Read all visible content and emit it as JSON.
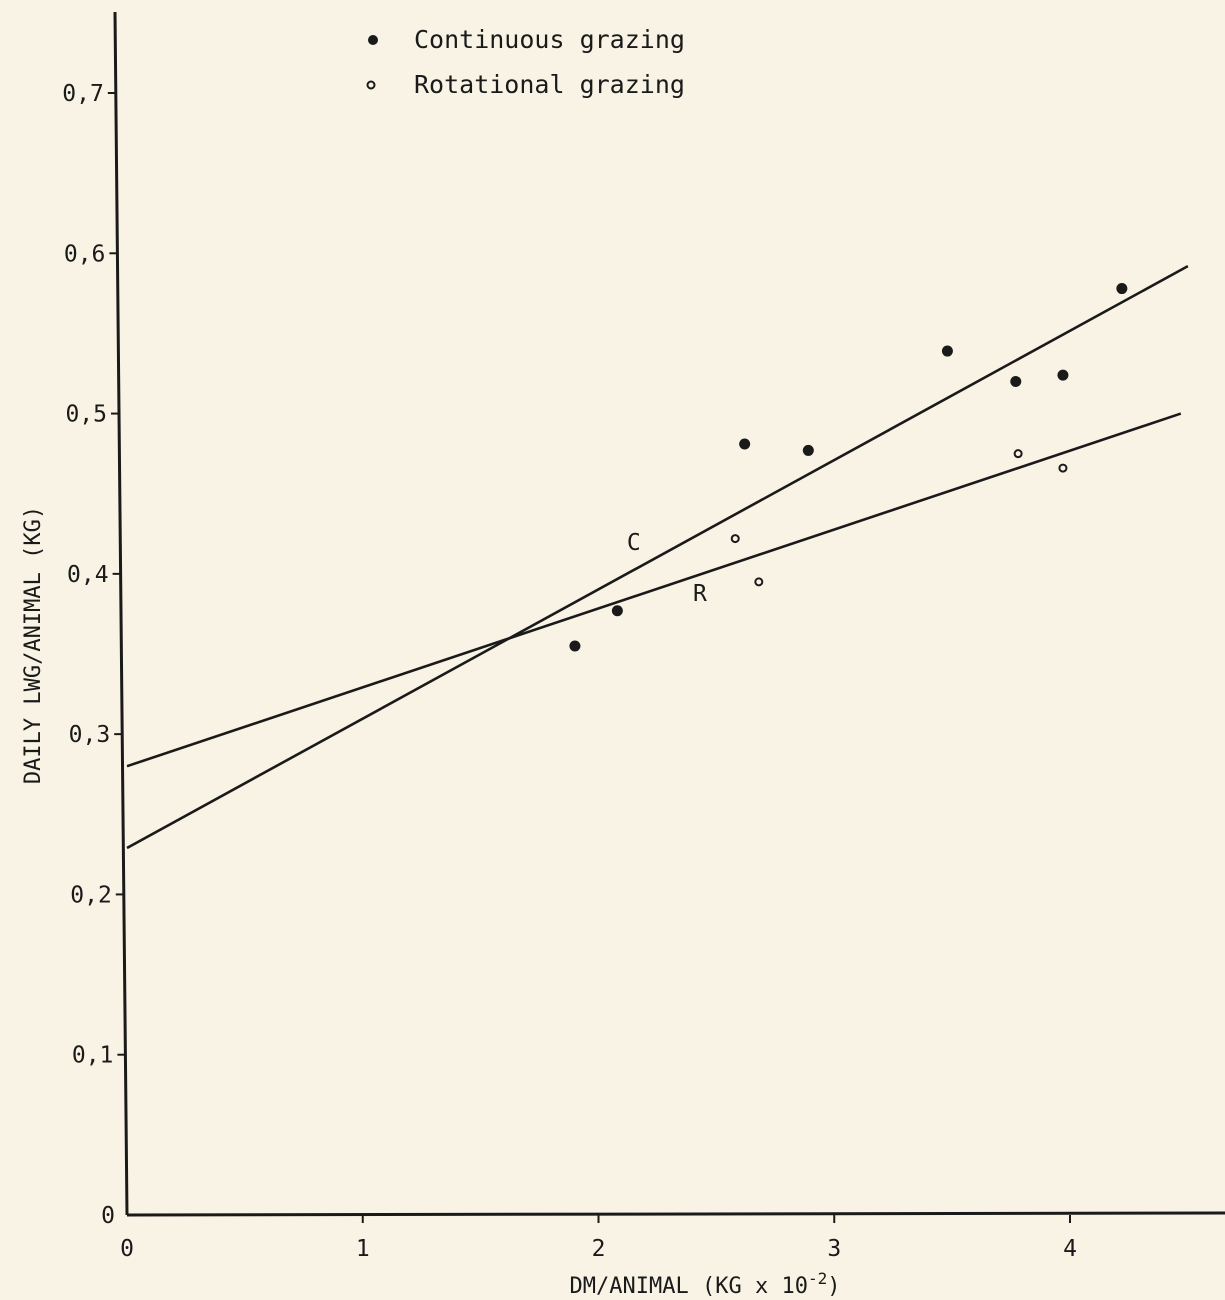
{
  "chart_data": {
    "type": "scatter",
    "xlabel": "DM/ANIMAL (KG x 10",
    "xlabel_exponent": "-2",
    "xlabel_suffix": ")",
    "ylabel": "DAILY LWG/ANIMAL  (KG)",
    "xlim": [
      0,
      4.6
    ],
    "ylim": [
      0,
      0.75
    ],
    "x_ticks": [
      0,
      1,
      2,
      3,
      4
    ],
    "x_tick_labels": [
      "0",
      "1",
      "2",
      "3",
      "4"
    ],
    "y_ticks": [
      0,
      0.1,
      0.2,
      0.3,
      0.4,
      0.5,
      0.6,
      0.7
    ],
    "y_tick_labels": [
      "0",
      "0,1",
      "0,2",
      "0,3",
      "0,4",
      "0,5",
      "0,6",
      "0,7"
    ],
    "grid": false,
    "legend_position": "top-center",
    "series": [
      {
        "name": "Continuous grazing",
        "marker": "filled-circle",
        "points": [
          {
            "x": 1.9,
            "y": 0.355
          },
          {
            "x": 2.08,
            "y": 0.377
          },
          {
            "x": 2.62,
            "y": 0.481
          },
          {
            "x": 2.89,
            "y": 0.477
          },
          {
            "x": 3.48,
            "y": 0.539
          },
          {
            "x": 3.77,
            "y": 0.52
          },
          {
            "x": 3.97,
            "y": 0.524
          },
          {
            "x": 4.22,
            "y": 0.578
          }
        ],
        "fit_line": {
          "label": "C",
          "x": [
            0,
            4.5
          ],
          "y": [
            0.229,
            0.592
          ]
        }
      },
      {
        "name": "Rotational grazing",
        "marker": "open-circle",
        "points": [
          {
            "x": 2.58,
            "y": 0.422
          },
          {
            "x": 2.68,
            "y": 0.395
          },
          {
            "x": 3.78,
            "y": 0.475
          },
          {
            "x": 3.97,
            "y": 0.466
          }
        ],
        "fit_line": {
          "label": "R",
          "x": [
            0,
            4.47
          ],
          "y": [
            0.28,
            0.5
          ]
        }
      }
    ],
    "line_labels": [
      {
        "text": "C",
        "x": 2.15,
        "y": 0.415
      },
      {
        "text": "R",
        "x": 2.43,
        "y": 0.383
      }
    ]
  }
}
